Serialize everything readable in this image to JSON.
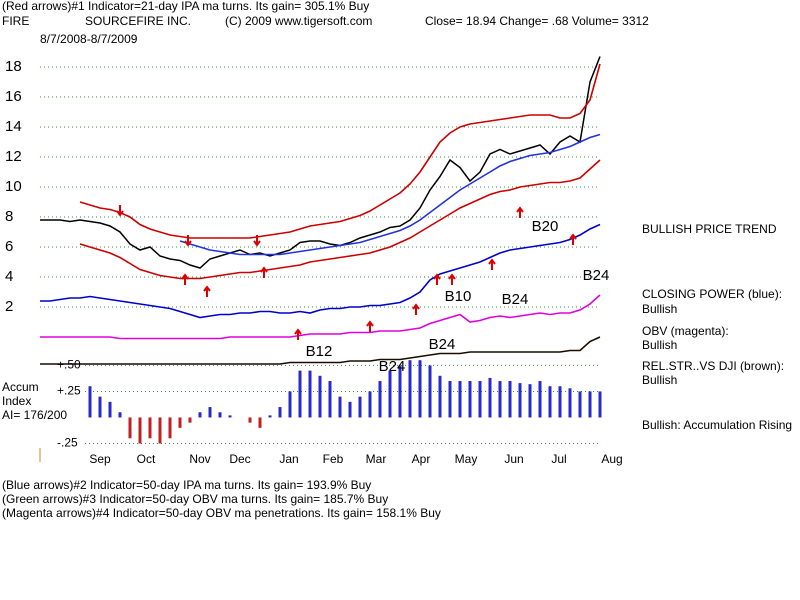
{
  "header": {
    "line1": "(Red arrows)#1 Indicator=21-day IPA ma turns. Its gain= 305.1% Buy",
    "symbol": "FIRE",
    "company": "SOURCEFIRE INC.",
    "copyright": "(C) 2009 www.tigersoft.com",
    "quote": "Close= 18.94  Change= .68 Volume= 3312",
    "period": "8/7/2008-8/7/2009"
  },
  "chart_data": [
    {
      "type": "line",
      "x": [
        0,
        1,
        2,
        3,
        4,
        5,
        6,
        7,
        8,
        9,
        10,
        11,
        12,
        13,
        14,
        15,
        16,
        17,
        18,
        19,
        20,
        21,
        22,
        23,
        24,
        25,
        26,
        27,
        28,
        29,
        30,
        31,
        32,
        33,
        34,
        35,
        36,
        37,
        38,
        39,
        40,
        41,
        42,
        43,
        44,
        45,
        46,
        47,
        48,
        49,
        50,
        51,
        52,
        53,
        54,
        55,
        56
      ],
      "xlim": [
        0,
        58
      ],
      "ylim": [
        -2,
        20
      ],
      "yticks": [
        2,
        4,
        6,
        8,
        10,
        12,
        14,
        16,
        18
      ],
      "grid": true,
      "series": [
        {
          "color": "#000000",
          "values": [
            7.8,
            7.8,
            7.8,
            7.7,
            7.8,
            7.7,
            7.6,
            7.4,
            7.0,
            6.2,
            5.8,
            6.0,
            5.4,
            5.2,
            5.1,
            4.8,
            4.6,
            5.2,
            5.4,
            5.6,
            5.8,
            5.5,
            5.6,
            5.4,
            5.6,
            5.8,
            6.3,
            6.4,
            6.4,
            6.2,
            6.1,
            6.3,
            6.6,
            6.8,
            7.0,
            7.3,
            7.4,
            7.8,
            8.6,
            9.8,
            10.7,
            11.8,
            11.3,
            10.4,
            11.0,
            12.2,
            12.5,
            12.2,
            12.4,
            12.6,
            12.8,
            12.2,
            13.0,
            13.4,
            13.0,
            17.0,
            18.7
          ]
        },
        {
          "color": "#cc0000",
          "values": [
            null,
            null,
            null,
            null,
            9.0,
            8.8,
            8.6,
            8.5,
            8.3,
            8.0,
            7.5,
            7.2,
            7.0,
            6.8,
            6.7,
            6.6,
            6.6,
            6.6,
            6.6,
            6.6,
            6.6,
            6.6,
            6.7,
            6.8,
            6.9,
            7.0,
            7.2,
            7.4,
            7.5,
            7.6,
            7.7,
            7.9,
            8.1,
            8.4,
            8.8,
            9.2,
            9.6,
            10.2,
            11.0,
            12.0,
            13.0,
            13.6,
            14.0,
            14.2,
            14.3,
            14.4,
            14.5,
            14.6,
            14.7,
            14.8,
            14.8,
            14.8,
            14.6,
            14.6,
            14.9,
            15.8,
            18.2
          ]
        },
        {
          "color": "#cc0000",
          "values": [
            null,
            null,
            null,
            null,
            6.2,
            6.0,
            5.8,
            5.6,
            5.3,
            4.9,
            4.5,
            4.3,
            4.1,
            4.0,
            3.9,
            3.9,
            3.9,
            4.0,
            4.1,
            4.2,
            4.3,
            4.3,
            4.4,
            4.5,
            4.6,
            4.7,
            4.8,
            5.0,
            5.1,
            5.2,
            5.3,
            5.4,
            5.5,
            5.6,
            5.8,
            6.0,
            6.3,
            6.6,
            7.0,
            7.4,
            7.8,
            8.2,
            8.6,
            8.9,
            9.2,
            9.5,
            9.7,
            9.8,
            10.0,
            10.1,
            10.2,
            10.3,
            10.3,
            10.4,
            10.6,
            11.2,
            11.8
          ]
        },
        {
          "color": "#2233dd",
          "values": [
            null,
            null,
            null,
            null,
            null,
            null,
            null,
            null,
            null,
            null,
            null,
            null,
            null,
            null,
            6.4,
            6.2,
            6.0,
            5.8,
            5.7,
            5.6,
            5.5,
            5.5,
            5.5,
            5.5,
            5.5,
            5.6,
            5.7,
            5.8,
            5.9,
            6.0,
            6.1,
            6.2,
            6.3,
            6.5,
            6.7,
            6.9,
            7.1,
            7.4,
            7.8,
            8.3,
            8.8,
            9.3,
            9.8,
            10.2,
            10.6,
            11.0,
            11.4,
            11.7,
            11.9,
            12.1,
            12.2,
            12.3,
            12.5,
            12.7,
            13.0,
            13.3,
            13.5
          ]
        },
        {
          "color": "#0000cc",
          "values": [
            2.4,
            2.4,
            2.5,
            2.6,
            2.6,
            2.7,
            2.6,
            2.5,
            2.4,
            2.3,
            2.2,
            2.1,
            2.0,
            1.9,
            1.7,
            1.5,
            1.3,
            1.4,
            1.5,
            1.5,
            1.6,
            1.6,
            1.7,
            1.7,
            1.6,
            1.6,
            1.7,
            1.6,
            1.8,
            1.9,
            1.9,
            2.0,
            2.0,
            2.1,
            2.1,
            2.2,
            2.3,
            2.6,
            3.0,
            3.8,
            4.2,
            4.4,
            4.6,
            4.8,
            5.0,
            5.3,
            5.6,
            5.8,
            5.9,
            6.0,
            6.1,
            6.2,
            6.3,
            6.5,
            6.8,
            7.2,
            7.5
          ]
        },
        {
          "color": "#dd00dd",
          "values": [
            0.0,
            0.0,
            0.0,
            0.0,
            0.0,
            0.0,
            0.0,
            0.0,
            -0.1,
            -0.1,
            -0.1,
            -0.1,
            -0.1,
            -0.1,
            -0.1,
            -0.1,
            -0.1,
            -0.1,
            -0.1,
            0.0,
            0.0,
            0.0,
            0.0,
            0.0,
            0.0,
            0.0,
            0.1,
            0.2,
            0.2,
            0.2,
            0.2,
            0.3,
            0.3,
            0.3,
            0.4,
            0.4,
            0.4,
            0.5,
            0.6,
            0.9,
            1.1,
            1.3,
            1.5,
            1.0,
            1.1,
            1.3,
            1.4,
            1.3,
            1.4,
            1.5,
            1.6,
            1.5,
            1.6,
            1.6,
            1.8,
            2.2,
            2.8
          ]
        },
        {
          "color": "#1a0a00",
          "values": [
            -1.8,
            -1.8,
            -1.8,
            -1.8,
            -1.8,
            -1.8,
            -1.8,
            -1.8,
            -1.8,
            -1.8,
            -1.8,
            -1.8,
            -1.8,
            -1.8,
            -1.8,
            -1.8,
            -1.8,
            -1.8,
            -1.8,
            -1.8,
            -1.8,
            -1.8,
            -1.8,
            -1.8,
            -1.8,
            -1.7,
            -1.7,
            -1.7,
            -1.7,
            -1.7,
            -1.7,
            -1.6,
            -1.6,
            -1.6,
            -1.5,
            -1.5,
            -1.5,
            -1.4,
            -1.3,
            -1.2,
            -1.1,
            -1.1,
            -1.1,
            -1.0,
            -1.0,
            -1.0,
            -1.0,
            -1.0,
            -1.0,
            -1.0,
            -1.0,
            -1.0,
            -1.0,
            -0.9,
            -0.9,
            -0.3,
            0.0
          ]
        }
      ]
    },
    {
      "type": "bar",
      "title": "Accum",
      "subtitle": "Index",
      "annotation": "AI= 176/200",
      "x": [
        0,
        1,
        2,
        3,
        4,
        5,
        6,
        7,
        8,
        9,
        10,
        11,
        12,
        13,
        14,
        15,
        16,
        17,
        18,
        19,
        20,
        21,
        22,
        23,
        24,
        25,
        26,
        27,
        28,
        29,
        30,
        31,
        32,
        33,
        34,
        35,
        36,
        37,
        38,
        39,
        40,
        41,
        42,
        43,
        44,
        45,
        46,
        47,
        48,
        49,
        50,
        51,
        52,
        53,
        54,
        55,
        56
      ],
      "values": [
        null,
        null,
        null,
        null,
        null,
        0.3,
        0.2,
        0.15,
        0.05,
        -0.2,
        -0.25,
        -0.2,
        -0.25,
        -0.2,
        -0.1,
        -0.05,
        0.05,
        0.1,
        0.05,
        0.02,
        0.0,
        -0.05,
        -0.1,
        0.02,
        0.1,
        0.25,
        0.45,
        0.45,
        0.4,
        0.35,
        0.2,
        0.15,
        0.2,
        0.25,
        0.35,
        0.45,
        0.5,
        0.55,
        0.55,
        0.5,
        0.4,
        0.35,
        0.35,
        0.35,
        0.35,
        0.38,
        0.35,
        0.35,
        0.33,
        0.32,
        0.35,
        0.3,
        0.3,
        0.28,
        0.25,
        0.25,
        0.25
      ],
      "color": "#2a2ac8",
      "negative_color": "#c02020",
      "xlim": [
        0,
        58
      ],
      "ylim": [
        -0.3,
        0.6
      ],
      "yticks": [
        {
          "value": 0.5,
          "label": "+.50"
        },
        {
          "value": 0.25,
          "label": "+.25"
        },
        {
          "value": -0.25,
          "label": "-.25"
        }
      ],
      "xticks": [
        {
          "value": 6,
          "label": "Sep"
        },
        {
          "value": 10.6,
          "label": "Oct"
        },
        {
          "value": 16,
          "label": "Nov"
        },
        {
          "value": 20,
          "label": "Dec"
        },
        {
          "value": 24.9,
          "label": "Jan"
        },
        {
          "value": 29.3,
          "label": "Feb"
        },
        {
          "value": 33.6,
          "label": "Mar"
        },
        {
          "value": 38.1,
          "label": "Apr"
        },
        {
          "value": 42.6,
          "label": "May"
        },
        {
          "value": 47.4,
          "label": "Jun"
        },
        {
          "value": 51.9,
          "label": "Jul"
        },
        {
          "value": 57.2,
          "label": "Aug"
        }
      ]
    }
  ],
  "signals": [
    "B12",
    "B24",
    "B24",
    "B10",
    "B24",
    "B20",
    "B24"
  ],
  "notes": [
    "BULLISH PRICE TREND",
    "CLOSING POWER (blue):",
    "Bullish",
    "OBV (magenta):",
    "Bullish",
    "REL.STR..VS DJI (brown):",
    "Bullish",
    "Bullish: Accumulation Rising"
  ],
  "footer": [
    "(Blue arrows)#2 Indicator=50-day IPA ma turns. Its gain= 193.9% Buy",
    "(Green arrows)#3 Indicator=50-day OBV ma turns. Its gain= 185.7% Buy",
    "(Magenta arrows)#4 Indicator=50-day OBV ma penetrations. Its gain= 158.1% Buy"
  ]
}
